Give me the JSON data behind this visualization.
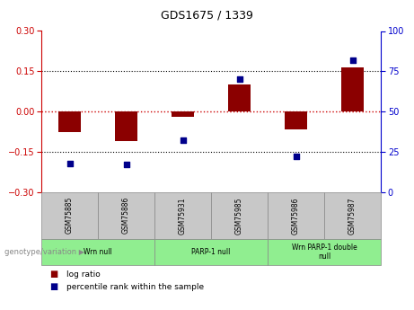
{
  "title": "GDS1675 / 1339",
  "samples": [
    "GSM75885",
    "GSM75886",
    "GSM75931",
    "GSM75985",
    "GSM75986",
    "GSM75987"
  ],
  "log_ratio": [
    -0.075,
    -0.11,
    -0.02,
    0.1,
    -0.065,
    0.165
  ],
  "percentile_rank": [
    18,
    17,
    32,
    70,
    22,
    82
  ],
  "groups": [
    {
      "label": "Wrn null",
      "start": 0,
      "end": 2
    },
    {
      "label": "PARP-1 null",
      "start": 2,
      "end": 4
    },
    {
      "label": "Wrn PARP-1 double\nnull",
      "start": 4,
      "end": 6
    }
  ],
  "ylim_left": [
    -0.3,
    0.3
  ],
  "ylim_right": [
    0,
    100
  ],
  "yticks_left": [
    -0.3,
    -0.15,
    0,
    0.15,
    0.3
  ],
  "yticks_right": [
    0,
    25,
    50,
    75,
    100
  ],
  "bar_color": "#8B0000",
  "dot_color": "#00008B",
  "zero_line_color": "#CC0000",
  "grid_line_color": "#000000",
  "background_color": "#FFFFFF",
  "group_color": "#90EE90",
  "sample_box_color": "#C8C8C8",
  "genotype_label": "genotype/variation",
  "legend_log_ratio": "log ratio",
  "legend_percentile": "percentile rank within the sample",
  "bar_width": 0.4,
  "title_fontsize": 9,
  "tick_fontsize": 7,
  "label_fontsize": 6.5
}
